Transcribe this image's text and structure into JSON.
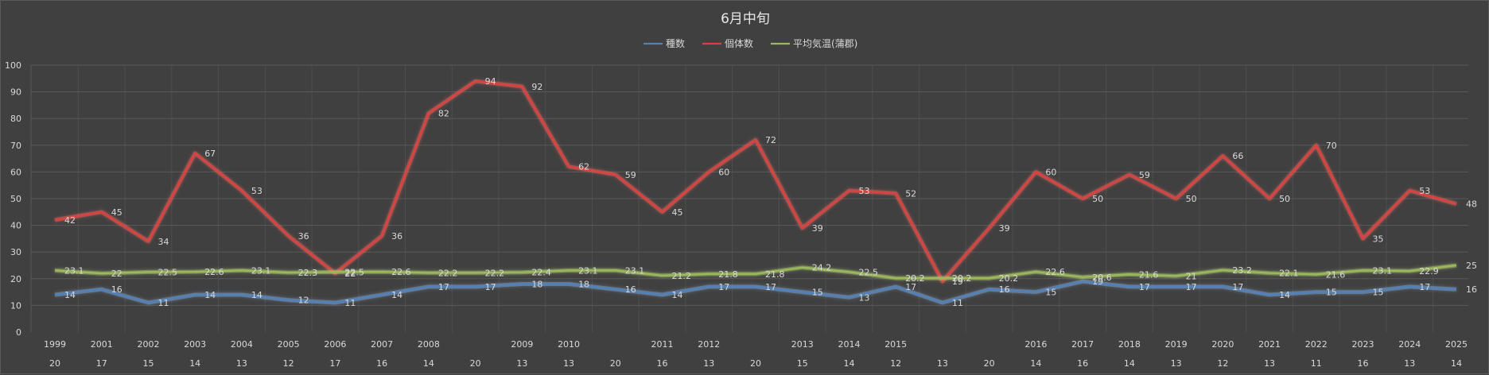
{
  "chart_data": {
    "type": "line",
    "title": "6月中旬",
    "legend_position": "top",
    "grid": true,
    "ylim": [
      0,
      100
    ],
    "yticks": [
      0,
      10,
      20,
      30,
      40,
      50,
      60,
      70,
      80,
      90,
      100
    ],
    "categories": [
      {
        "year": "1999",
        "count": "20"
      },
      {
        "year": "2001",
        "count": "17"
      },
      {
        "year": "2002",
        "count": "15"
      },
      {
        "year": "2003",
        "count": "14"
      },
      {
        "year": "2004",
        "count": "13"
      },
      {
        "year": "2005",
        "count": "12"
      },
      {
        "year": "2006",
        "count": "17"
      },
      {
        "year": "2007",
        "count": "16"
      },
      {
        "year": "2008",
        "count": "14"
      },
      {
        "year": "",
        "count": "20"
      },
      {
        "year": "2009",
        "count": "13"
      },
      {
        "year": "2010",
        "count": "13"
      },
      {
        "year": "",
        "count": "20"
      },
      {
        "year": "2011",
        "count": "16"
      },
      {
        "year": "2012",
        "count": "13"
      },
      {
        "year": "",
        "count": "20"
      },
      {
        "year": "2013",
        "count": "15"
      },
      {
        "year": "2014",
        "count": "14"
      },
      {
        "year": "2015",
        "count": "12"
      },
      {
        "year": "",
        "count": "13"
      },
      {
        "year": "",
        "count": "20"
      },
      {
        "year": "2016",
        "count": "14"
      },
      {
        "year": "2017",
        "count": "16"
      },
      {
        "year": "2018",
        "count": "14"
      },
      {
        "year": "2019",
        "count": "13"
      },
      {
        "year": "2020",
        "count": "12"
      },
      {
        "year": "2021",
        "count": "13"
      },
      {
        "year": "2022",
        "count": "11"
      },
      {
        "year": "2023",
        "count": "16"
      },
      {
        "year": "2024",
        "count": "13"
      },
      {
        "year": "2025",
        "count": "14"
      }
    ],
    "series": [
      {
        "name": "種数",
        "color": "#4f81bd",
        "glow": "#8fb4e3",
        "values": [
          14,
          16,
          11,
          14,
          14,
          12,
          11,
          14,
          17,
          17,
          18,
          18,
          16,
          14,
          17,
          17,
          15,
          13,
          17,
          11,
          16,
          15,
          19,
          17,
          17,
          17,
          14,
          15,
          15,
          17,
          16
        ]
      },
      {
        "name": "個体数",
        "color": "#e0403c",
        "glow": "#ff6b66",
        "values": [
          42,
          45,
          34,
          67,
          53,
          36,
          22,
          36,
          82,
          94,
          92,
          62,
          59,
          45,
          60,
          72,
          39,
          53,
          52,
          19,
          39,
          60,
          50,
          59,
          50,
          66,
          50,
          70,
          35,
          53,
          48
        ]
      },
      {
        "name": "平均気温(蒲郡)",
        "color": "#9bbb59",
        "glow": "#c4e07a",
        "values": [
          23.1,
          22,
          22.5,
          22.6,
          23.1,
          22.3,
          22.5,
          22.6,
          22.2,
          22.2,
          22.4,
          23.1,
          23.1,
          21.2,
          21.8,
          21.8,
          24.2,
          22.5,
          20.2,
          20.2,
          20.2,
          22.6,
          20.6,
          21.6,
          21,
          23.2,
          22.1,
          21.6,
          23.1,
          22.9,
          25
        ]
      }
    ]
  }
}
